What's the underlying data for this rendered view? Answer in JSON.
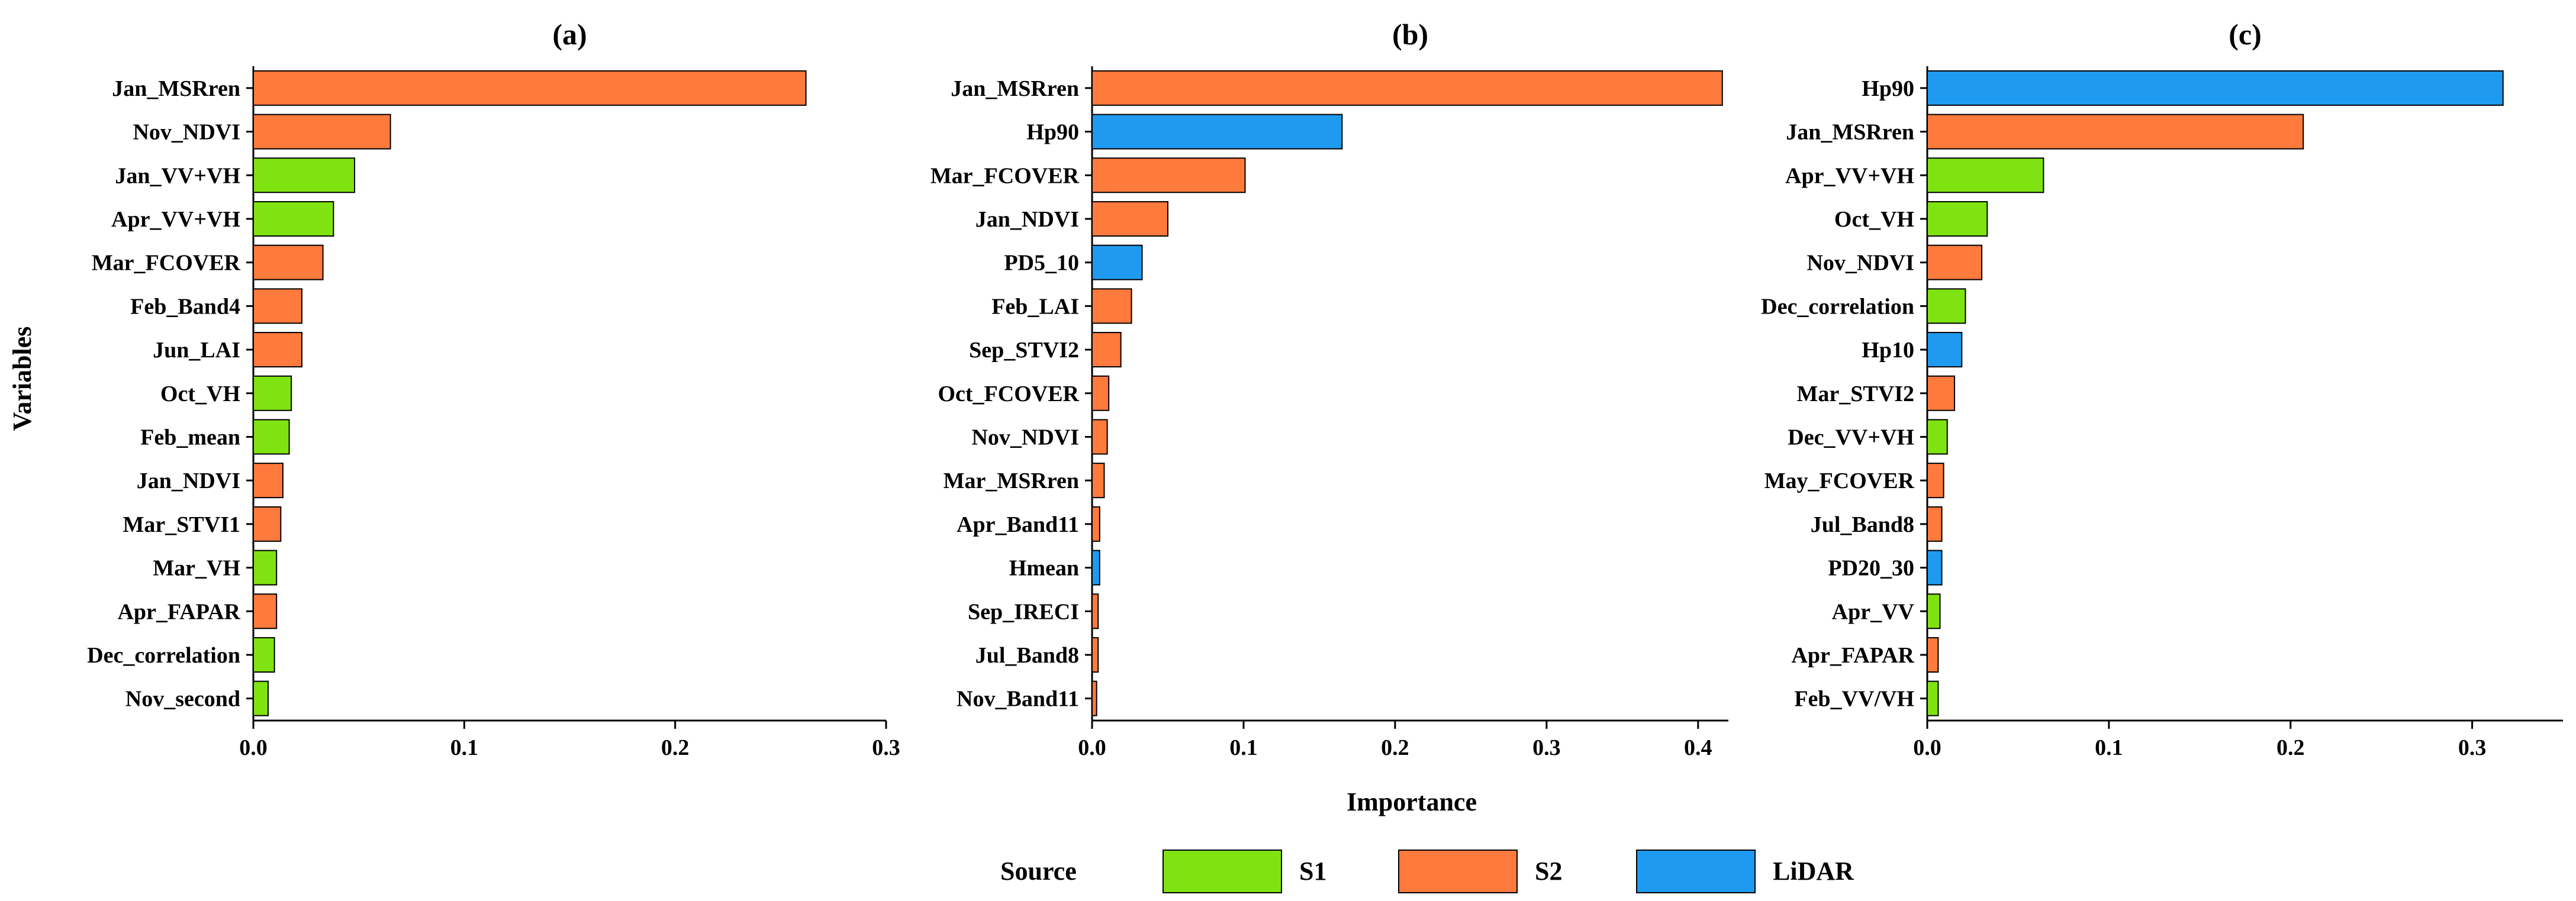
{
  "source_colors": {
    "S1": "#7FE312",
    "S2": "#FF7A3D",
    "LiDAR": "#1E9BF0"
  },
  "chart_data": [
    {
      "type": "bar",
      "orientation": "horizontal",
      "title": "(a)",
      "xlabel": "Importance",
      "ylabel": "Variables",
      "xlim": [
        0,
        0.3
      ],
      "xticks": [
        0.0,
        0.1,
        0.2,
        0.3
      ],
      "xtick_labels": [
        "0.0",
        "0.1",
        "0.2",
        "0.3"
      ],
      "categories": [
        "Jan_MSRren",
        "Nov_NDVI",
        "Jan_VV+VH",
        "Apr_VV+VH",
        "Mar_FCOVER",
        "Feb_Band4",
        "Jun_LAI",
        "Oct_VH",
        "Feb_mean",
        "Jan_NDVI",
        "Mar_STVI1",
        "Mar_VH",
        "Apr_FAPAR",
        "Dec_correlation",
        "Nov_second"
      ],
      "values": [
        0.262,
        0.065,
        0.048,
        0.038,
        0.033,
        0.023,
        0.023,
        0.018,
        0.017,
        0.014,
        0.013,
        0.011,
        0.011,
        0.01,
        0.007
      ],
      "source": [
        "S2",
        "S2",
        "S1",
        "S1",
        "S2",
        "S2",
        "S2",
        "S1",
        "S1",
        "S2",
        "S2",
        "S1",
        "S2",
        "S1",
        "S1"
      ]
    },
    {
      "type": "bar",
      "orientation": "horizontal",
      "title": "(b)",
      "xlabel": "Importance",
      "xlim": [
        0,
        0.42
      ],
      "xticks": [
        0.0,
        0.1,
        0.2,
        0.3,
        0.4
      ],
      "xtick_labels": [
        "0.0",
        "0.1",
        "0.2",
        "0.3",
        "0.4"
      ],
      "categories": [
        "Jan_MSRren",
        "Hp90",
        "Mar_FCOVER",
        "Jan_NDVI",
        "PD5_10",
        "Feb_LAI",
        "Sep_STVI2",
        "Oct_FCOVER",
        "Nov_NDVI",
        "Mar_MSRren",
        "Apr_Band11",
        "Hmean",
        "Sep_IRECI",
        "Jul_Band8",
        "Nov_Band11"
      ],
      "values": [
        0.416,
        0.165,
        0.101,
        0.05,
        0.033,
        0.026,
        0.019,
        0.011,
        0.01,
        0.008,
        0.005,
        0.005,
        0.004,
        0.004,
        0.003
      ],
      "source": [
        "S2",
        "LiDAR",
        "S2",
        "S2",
        "LiDAR",
        "S2",
        "S2",
        "S2",
        "S2",
        "S2",
        "S2",
        "LiDAR",
        "S2",
        "S2",
        "S2"
      ]
    },
    {
      "type": "bar",
      "orientation": "horizontal",
      "title": "(c)",
      "xlabel": "Importance",
      "xlim": [
        0,
        0.35
      ],
      "xticks": [
        0.0,
        0.1,
        0.2,
        0.3
      ],
      "xtick_labels": [
        "0.0",
        "0.1",
        "0.2",
        "0.3"
      ],
      "categories": [
        "Hp90",
        "Jan_MSRren",
        "Apr_VV+VH",
        "Oct_VH",
        "Nov_NDVI",
        "Dec_correlation",
        "Hp10",
        "Mar_STVI2",
        "Dec_VV+VH",
        "May_FCOVER",
        "Jul_Band8",
        "PD20_30",
        "Apr_VV",
        "Apr_FAPAR",
        "Feb_VV/VH"
      ],
      "values": [
        0.317,
        0.207,
        0.064,
        0.033,
        0.03,
        0.021,
        0.019,
        0.015,
        0.011,
        0.009,
        0.008,
        0.008,
        0.007,
        0.006,
        0.006
      ],
      "source": [
        "LiDAR",
        "S2",
        "S1",
        "S1",
        "S2",
        "S1",
        "LiDAR",
        "S2",
        "S1",
        "S2",
        "S2",
        "LiDAR",
        "S1",
        "S2",
        "S1"
      ]
    }
  ],
  "axis_label_x": "Importance",
  "axis_label_y": "Variables",
  "legend": {
    "title": "Source",
    "items": [
      {
        "label": "S1",
        "key": "S1"
      },
      {
        "label": "S2",
        "key": "S2"
      },
      {
        "label": "LiDAR",
        "key": "LiDAR"
      }
    ]
  }
}
